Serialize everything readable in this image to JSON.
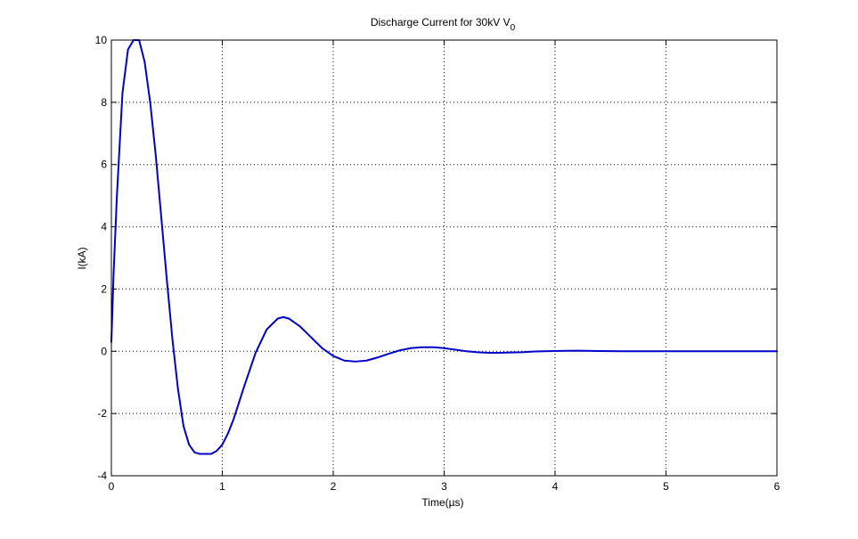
{
  "chart_data": {
    "type": "line",
    "title": "Discharge Current for 30kV V",
    "title_subscript": "0",
    "xlabel": "Time(µs)",
    "ylabel": "I(kA)",
    "xlim": [
      0,
      6
    ],
    "ylim": [
      -4,
      10
    ],
    "xticks": [
      0,
      1,
      2,
      3,
      4,
      5,
      6
    ],
    "yticks": [
      -4,
      -2,
      0,
      2,
      4,
      6,
      8,
      10
    ],
    "xtick_labels": [
      "0",
      "1",
      "2",
      "3",
      "4",
      "5",
      "6"
    ],
    "ytick_labels": [
      "-4",
      "-2",
      "0",
      "2",
      "4",
      "6",
      "8",
      "10"
    ],
    "grid": true,
    "grid_style": "dotted",
    "line_color": "#0000cc",
    "series": [
      {
        "x": [
          0,
          0.02,
          0.05,
          0.1,
          0.15,
          0.2,
          0.25,
          0.3,
          0.35,
          0.4,
          0.45,
          0.5,
          0.55,
          0.6,
          0.65,
          0.7,
          0.75,
          0.8,
          0.85,
          0.9,
          0.95,
          1.0,
          1.05,
          1.1,
          1.2,
          1.3,
          1.4,
          1.5,
          1.55,
          1.6,
          1.7,
          1.8,
          1.9,
          2.0,
          2.1,
          2.2,
          2.3,
          2.4,
          2.5,
          2.6,
          2.7,
          2.8,
          2.9,
          3.0,
          3.1,
          3.2,
          3.3,
          3.4,
          3.5,
          3.6,
          3.7,
          3.8,
          3.9,
          4.0,
          4.2,
          4.4,
          4.6,
          4.8,
          5.0,
          5.5,
          6.0
        ],
        "y": [
          0.3,
          2.5,
          5.0,
          8.3,
          9.7,
          10.0,
          10.0,
          9.3,
          8.0,
          6.3,
          4.3,
          2.3,
          0.4,
          -1.2,
          -2.4,
          -3.0,
          -3.25,
          -3.3,
          -3.3,
          -3.3,
          -3.2,
          -3.0,
          -2.65,
          -2.2,
          -1.1,
          -0.05,
          0.7,
          1.05,
          1.1,
          1.05,
          0.8,
          0.45,
          0.1,
          -0.15,
          -0.3,
          -0.33,
          -0.3,
          -0.2,
          -0.08,
          0.03,
          0.1,
          0.13,
          0.13,
          0.1,
          0.05,
          0.0,
          -0.03,
          -0.05,
          -0.05,
          -0.04,
          -0.03,
          -0.01,
          0.0,
          0.01,
          0.02,
          0.01,
          0.0,
          0.0,
          0.0,
          0.0,
          0.0
        ]
      }
    ]
  }
}
